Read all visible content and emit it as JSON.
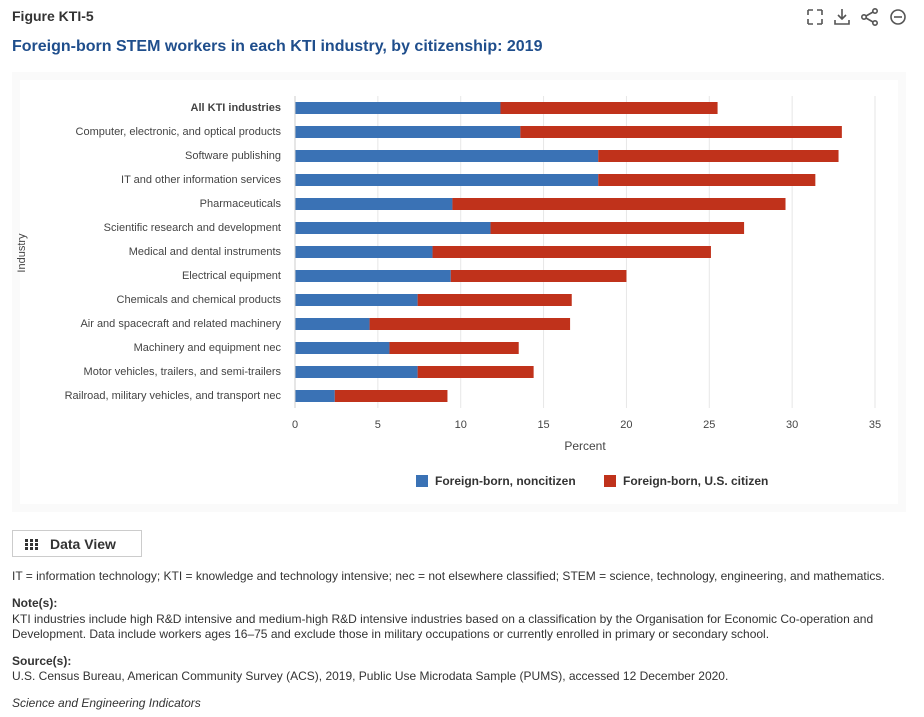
{
  "header": {
    "figure_label": "Figure KTI-5",
    "title": "Foreign-born STEM workers in each KTI industry, by citizenship: 2019"
  },
  "chart_data": {
    "type": "stacked-bar-horizontal",
    "y_label": "Industry",
    "x_label": "Percent",
    "categories": [
      "All KTI industries",
      "Computer, electronic, and optical products",
      "Software publishing",
      "IT and other information services",
      "Pharmaceuticals",
      "Scientific research and development",
      "Medical and dental instruments",
      "Electrical equipment",
      "Chemicals and chemical products",
      "Air and spacecraft and related machinery",
      "Machinery and equipment nec",
      "Motor vehicles, trailers, and semi-trailers",
      "Railroad, military vehicles, and transport nec"
    ],
    "series": [
      {
        "name": "Foreign-born, noncitizen",
        "color": "#3a72b5",
        "values": [
          12.4,
          13.6,
          18.3,
          18.3,
          9.5,
          11.8,
          8.3,
          9.4,
          7.4,
          4.5,
          5.7,
          7.4,
          2.4
        ]
      },
      {
        "name": "Foreign-born, U.S. citizen",
        "color": "#c0321b",
        "values": [
          13.1,
          19.4,
          14.5,
          13.1,
          20.1,
          15.3,
          16.8,
          10.6,
          9.3,
          12.1,
          7.8,
          7.0,
          6.8
        ]
      }
    ],
    "xlim": [
      0,
      35
    ],
    "xticks": [
      0,
      5,
      10,
      15,
      20,
      25,
      30,
      35
    ],
    "grid": true,
    "legend": "bottom"
  },
  "data_view_button": "Data View",
  "footnotes": {
    "abbreviations": "IT = information technology; KTI = knowledge and technology intensive; nec = not elsewhere classified; STEM = science, technology, engineering, and mathematics.",
    "notes_heading": "Note(s):",
    "notes_text": "KTI industries include high R&D intensive and medium-high R&D intensive industries based on a classification by the Organisation for Economic Co-operation and Development. Data include workers ages 16–75 and exclude those in military occupations or currently enrolled in primary or secondary school.",
    "sources_heading": "Source(s):",
    "sources_text": "U.S. Census Bureau, American Community Survey (ACS), 2019, Public Use Microdata Sample (PUMS), accessed 12 December 2020.",
    "publication": "Science and Engineering Indicators"
  }
}
